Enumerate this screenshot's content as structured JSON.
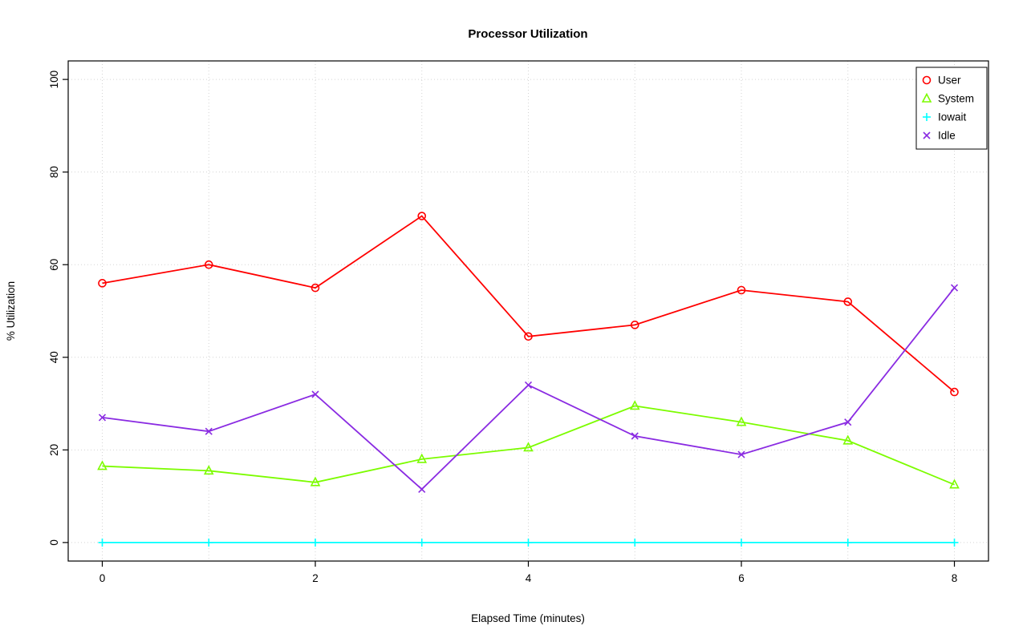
{
  "chart_data": {
    "type": "line",
    "title": "Processor Utilization",
    "xlabel": "Elapsed Time (minutes)",
    "ylabel": "% Utilization",
    "xlim": [
      0,
      8
    ],
    "ylim": [
      0,
      100
    ],
    "xticks": [
      0,
      2,
      4,
      6,
      8
    ],
    "yticks": [
      0,
      20,
      40,
      60,
      80,
      100
    ],
    "xgrid": [
      0,
      1,
      2,
      3,
      4,
      5,
      6,
      7,
      8
    ],
    "ygrid": [
      0,
      20,
      40,
      60,
      80,
      100
    ],
    "grid": true,
    "grid_style": "dotted",
    "legend_position": "top-right",
    "background_color": "#ffffff",
    "x": [
      0,
      1,
      2,
      3,
      4,
      5,
      6,
      7,
      8
    ],
    "series": [
      {
        "name": "User",
        "color": "#ff0000",
        "marker": "circle",
        "values": [
          56,
          60,
          55,
          70.5,
          44.5,
          47,
          54.5,
          52,
          32.5
        ]
      },
      {
        "name": "System",
        "color": "#7cfc00",
        "marker": "triangle",
        "values": [
          16.5,
          15.5,
          13,
          18,
          20.5,
          29.5,
          26,
          22,
          12.5
        ]
      },
      {
        "name": "Iowait",
        "color": "#00ffff",
        "marker": "plus",
        "values": [
          0,
          0,
          0,
          0,
          0,
          0,
          0,
          0,
          0
        ]
      },
      {
        "name": "Idle",
        "color": "#8a2be2",
        "marker": "x",
        "values": [
          27,
          24,
          32,
          11.5,
          34,
          23,
          19,
          26,
          55
        ]
      }
    ]
  }
}
